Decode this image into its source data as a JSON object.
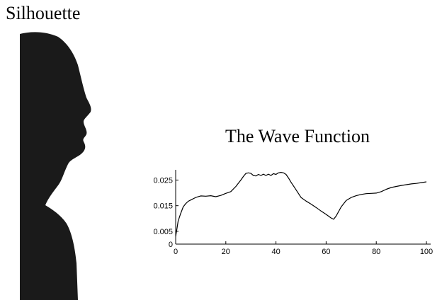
{
  "silhouette": {
    "title": "Silhouette",
    "figure_icon": "head-profile-silhouette",
    "fill_color": "#1a1a1a"
  },
  "chart_data": {
    "type": "line",
    "title": "The Wave Function",
    "xlabel": "",
    "ylabel": "",
    "xlim": [
      0,
      100
    ],
    "ylim": [
      0,
      0.029
    ],
    "x_ticks": [
      0,
      20,
      40,
      60,
      80,
      100
    ],
    "x_tick_labels": [
      "0",
      "20",
      "40",
      "60",
      "80",
      "100"
    ],
    "y_ticks": [
      0,
      0.005,
      0.015,
      0.025
    ],
    "y_tick_labels": [
      "0",
      "0.005",
      "0.015",
      "0.025"
    ],
    "grid": false,
    "line_color": "#000000",
    "series": [
      {
        "x": [
          0,
          0.5,
          1,
          2,
          3,
          4,
          5,
          6,
          8,
          10,
          12,
          14,
          16,
          18,
          20,
          22,
          24,
          26,
          27,
          28,
          29,
          30,
          31,
          32,
          33,
          34,
          35,
          36,
          37,
          38,
          39,
          40,
          41,
          42,
          43,
          44,
          45,
          46,
          48,
          50,
          52,
          54,
          56,
          58,
          60,
          62,
          63,
          64,
          66,
          68,
          70,
          72,
          74,
          76,
          78,
          80,
          82,
          84,
          86,
          88,
          90,
          92,
          94,
          96,
          98,
          100
        ],
        "y": [
          0.003,
          0.006,
          0.009,
          0.012,
          0.0145,
          0.0158,
          0.0167,
          0.0172,
          0.0182,
          0.0188,
          0.0187,
          0.0189,
          0.0185,
          0.019,
          0.0198,
          0.0205,
          0.0225,
          0.025,
          0.0264,
          0.0276,
          0.0278,
          0.0276,
          0.0268,
          0.0266,
          0.0272,
          0.0268,
          0.0273,
          0.0268,
          0.0273,
          0.0268,
          0.0275,
          0.0272,
          0.0278,
          0.028,
          0.0278,
          0.0272,
          0.0258,
          0.0242,
          0.0212,
          0.0182,
          0.0168,
          0.0156,
          0.0143,
          0.0129,
          0.0116,
          0.0102,
          0.0097,
          0.011,
          0.0145,
          0.017,
          0.0182,
          0.0189,
          0.0194,
          0.0197,
          0.0198,
          0.0199,
          0.0205,
          0.0214,
          0.0221,
          0.0225,
          0.0229,
          0.0232,
          0.0235,
          0.0237,
          0.024,
          0.0243
        ]
      }
    ]
  }
}
